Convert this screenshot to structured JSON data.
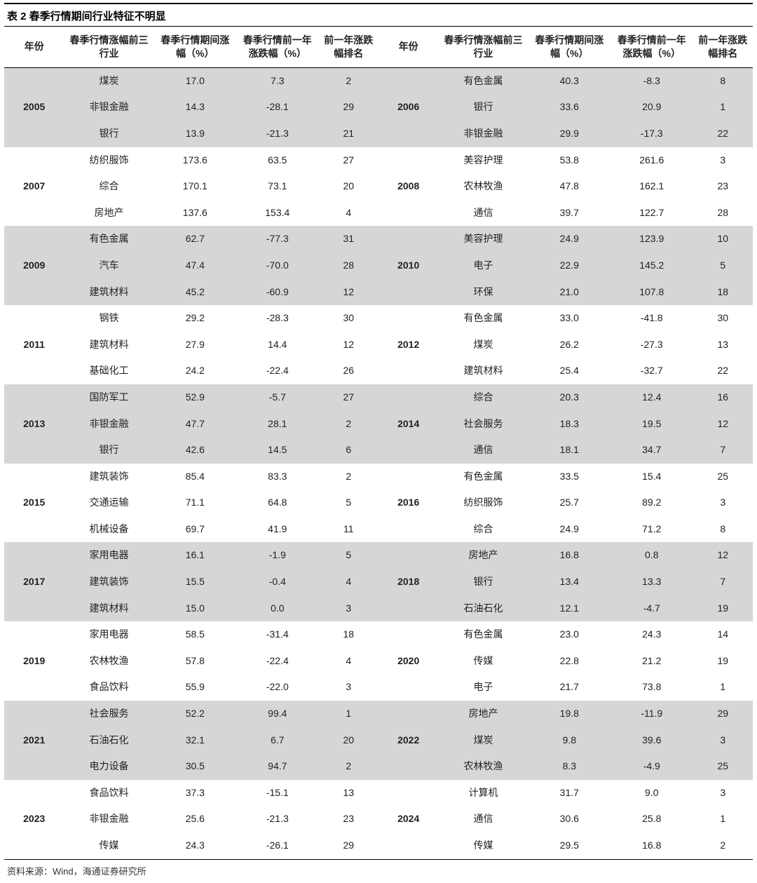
{
  "title": "表 2 春季行情期间行业特征不明显",
  "headers": [
    "年份",
    "春季行情涨幅前三行业",
    "春季行情期间涨幅（%）",
    "春季行情前一年涨跌幅（%）",
    "前一年涨跌幅排名",
    "年份",
    "春季行情涨幅前三行业",
    "春季行情期间涨幅（%）",
    "春季行情前一年涨跌幅（%）",
    "前一年涨跌幅排名"
  ],
  "groups": [
    {
      "shade": true,
      "left": {
        "year": "2005",
        "rows": [
          [
            "煤炭",
            "17.0",
            "7.3",
            "2"
          ],
          [
            "非银金融",
            "14.3",
            "-28.1",
            "29"
          ],
          [
            "银行",
            "13.9",
            "-21.3",
            "21"
          ]
        ]
      },
      "right": {
        "year": "2006",
        "rows": [
          [
            "有色金属",
            "40.3",
            "-8.3",
            "8"
          ],
          [
            "银行",
            "33.6",
            "20.9",
            "1"
          ],
          [
            "非银金融",
            "29.9",
            "-17.3",
            "22"
          ]
        ]
      }
    },
    {
      "shade": false,
      "left": {
        "year": "2007",
        "rows": [
          [
            "纺织服饰",
            "173.6",
            "63.5",
            "27"
          ],
          [
            "综合",
            "170.1",
            "73.1",
            "20"
          ],
          [
            "房地产",
            "137.6",
            "153.4",
            "4"
          ]
        ]
      },
      "right": {
        "year": "2008",
        "rows": [
          [
            "美容护理",
            "53.8",
            "261.6",
            "3"
          ],
          [
            "农林牧渔",
            "47.8",
            "162.1",
            "23"
          ],
          [
            "通信",
            "39.7",
            "122.7",
            "28"
          ]
        ]
      }
    },
    {
      "shade": true,
      "left": {
        "year": "2009",
        "rows": [
          [
            "有色金属",
            "62.7",
            "-77.3",
            "31"
          ],
          [
            "汽车",
            "47.4",
            "-70.0",
            "28"
          ],
          [
            "建筑材料",
            "45.2",
            "-60.9",
            "12"
          ]
        ]
      },
      "right": {
        "year": "2010",
        "rows": [
          [
            "美容护理",
            "24.9",
            "123.9",
            "10"
          ],
          [
            "电子",
            "22.9",
            "145.2",
            "5"
          ],
          [
            "环保",
            "21.0",
            "107.8",
            "18"
          ]
        ]
      }
    },
    {
      "shade": false,
      "left": {
        "year": "2011",
        "rows": [
          [
            "钢铁",
            "29.2",
            "-28.3",
            "30"
          ],
          [
            "建筑材料",
            "27.9",
            "14.4",
            "12"
          ],
          [
            "基础化工",
            "24.2",
            "-22.4",
            "26"
          ]
        ]
      },
      "right": {
        "year": "2012",
        "rows": [
          [
            "有色金属",
            "33.0",
            "-41.8",
            "30"
          ],
          [
            "煤炭",
            "26.2",
            "-27.3",
            "13"
          ],
          [
            "建筑材料",
            "25.4",
            "-32.7",
            "22"
          ]
        ]
      }
    },
    {
      "shade": true,
      "left": {
        "year": "2013",
        "rows": [
          [
            "国防军工",
            "52.9",
            "-5.7",
            "27"
          ],
          [
            "非银金融",
            "47.7",
            "28.1",
            "2"
          ],
          [
            "银行",
            "42.6",
            "14.5",
            "6"
          ]
        ]
      },
      "right": {
        "year": "2014",
        "rows": [
          [
            "综合",
            "20.3",
            "12.4",
            "16"
          ],
          [
            "社会服务",
            "18.3",
            "19.5",
            "12"
          ],
          [
            "通信",
            "18.1",
            "34.7",
            "7"
          ]
        ]
      }
    },
    {
      "shade": false,
      "left": {
        "year": "2015",
        "rows": [
          [
            "建筑装饰",
            "85.4",
            "83.3",
            "2"
          ],
          [
            "交通运输",
            "71.1",
            "64.8",
            "5"
          ],
          [
            "机械设备",
            "69.7",
            "41.9",
            "11"
          ]
        ]
      },
      "right": {
        "year": "2016",
        "rows": [
          [
            "有色金属",
            "33.5",
            "15.4",
            "25"
          ],
          [
            "纺织服饰",
            "25.7",
            "89.2",
            "3"
          ],
          [
            "综合",
            "24.9",
            "71.2",
            "8"
          ]
        ]
      }
    },
    {
      "shade": true,
      "left": {
        "year": "2017",
        "rows": [
          [
            "家用电器",
            "16.1",
            "-1.9",
            "5"
          ],
          [
            "建筑装饰",
            "15.5",
            "-0.4",
            "4"
          ],
          [
            "建筑材料",
            "15.0",
            "0.0",
            "3"
          ]
        ]
      },
      "right": {
        "year": "2018",
        "rows": [
          [
            "房地产",
            "16.8",
            "0.8",
            "12"
          ],
          [
            "银行",
            "13.4",
            "13.3",
            "7"
          ],
          [
            "石油石化",
            "12.1",
            "-4.7",
            "19"
          ]
        ]
      }
    },
    {
      "shade": false,
      "left": {
        "year": "2019",
        "rows": [
          [
            "家用电器",
            "58.5",
            "-31.4",
            "18"
          ],
          [
            "农林牧渔",
            "57.8",
            "-22.4",
            "4"
          ],
          [
            "食品饮料",
            "55.9",
            "-22.0",
            "3"
          ]
        ]
      },
      "right": {
        "year": "2020",
        "rows": [
          [
            "有色金属",
            "23.0",
            "24.3",
            "14"
          ],
          [
            "传媒",
            "22.8",
            "21.2",
            "19"
          ],
          [
            "电子",
            "21.7",
            "73.8",
            "1"
          ]
        ]
      }
    },
    {
      "shade": true,
      "left": {
        "year": "2021",
        "rows": [
          [
            "社会服务",
            "52.2",
            "99.4",
            "1"
          ],
          [
            "石油石化",
            "32.1",
            "6.7",
            "20"
          ],
          [
            "电力设备",
            "30.5",
            "94.7",
            "2"
          ]
        ]
      },
      "right": {
        "year": "2022",
        "rows": [
          [
            "房地产",
            "19.8",
            "-11.9",
            "29"
          ],
          [
            "煤炭",
            "9.8",
            "39.6",
            "3"
          ],
          [
            "农林牧渔",
            "8.3",
            "-4.9",
            "25"
          ]
        ]
      }
    },
    {
      "shade": false,
      "left": {
        "year": "2023",
        "rows": [
          [
            "食品饮料",
            "37.3",
            "-15.1",
            "13"
          ],
          [
            "非银金融",
            "25.6",
            "-21.3",
            "23"
          ],
          [
            "传媒",
            "24.3",
            "-26.1",
            "29"
          ]
        ]
      },
      "right": {
        "year": "2024",
        "rows": [
          [
            "计算机",
            "31.7",
            "9.0",
            "3"
          ],
          [
            "通信",
            "30.6",
            "25.8",
            "1"
          ],
          [
            "传媒",
            "29.5",
            "16.8",
            "2"
          ]
        ]
      }
    }
  ],
  "source": "资料来源：Wind，海通证券研究所",
  "style": {
    "shade_bg": "#d6d6d6",
    "border_color": "#000000",
    "font_family": "Microsoft YaHei",
    "title_fontsize": 15,
    "body_fontsize": 14,
    "widths_pct": [
      8,
      12,
      11,
      11,
      8,
      8,
      12,
      11,
      11,
      8
    ]
  }
}
